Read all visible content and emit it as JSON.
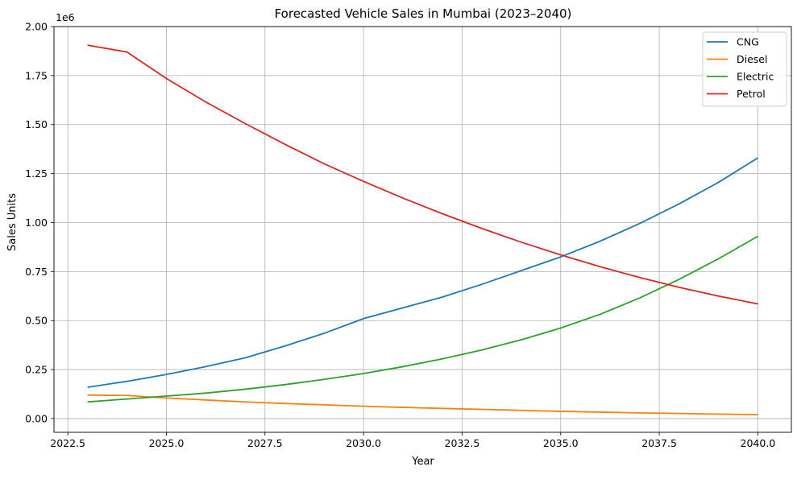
{
  "chart_data": {
    "type": "line",
    "title": "Forecasted Vehicle Sales in Mumbai (2023–2040)",
    "xlabel": "Year",
    "ylabel": "Sales Units",
    "y_offset_label": "1e6",
    "xlim": [
      2022.15,
      2040.85
    ],
    "ylim": [
      -0.07,
      2.0
    ],
    "y_scale_factor": 1000000,
    "xticks": [
      2022.5,
      2025.0,
      2027.5,
      2030.0,
      2032.5,
      2035.0,
      2037.5,
      2040.0
    ],
    "xtick_labels": [
      "2022.5",
      "2025.0",
      "2027.5",
      "2030.0",
      "2032.5",
      "2035.0",
      "2037.5",
      "2040.0"
    ],
    "yticks": [
      0.0,
      0.25,
      0.5,
      0.75,
      1.0,
      1.25,
      1.5,
      1.75,
      2.0
    ],
    "ytick_labels": [
      "0.00",
      "0.25",
      "0.50",
      "0.75",
      "1.00",
      "1.25",
      "1.50",
      "1.75",
      "2.00"
    ],
    "grid": true,
    "legend_position": "top-right",
    "x": [
      2023,
      2024,
      2025,
      2026,
      2027,
      2028,
      2029,
      2030,
      2031,
      2032,
      2033,
      2034,
      2035,
      2036,
      2037,
      2038,
      2039,
      2040
    ],
    "series": [
      {
        "name": "CNG",
        "color": "#1f77b4",
        "values": [
          0.16,
          0.19,
          0.225,
          0.265,
          0.31,
          0.37,
          0.435,
          0.51,
          0.565,
          0.62,
          0.685,
          0.755,
          0.825,
          0.905,
          0.995,
          1.095,
          1.205,
          1.33
        ]
      },
      {
        "name": "Diesel",
        "color": "#ff7f0e",
        "values": [
          0.12,
          0.118,
          0.105,
          0.095,
          0.085,
          0.077,
          0.07,
          0.063,
          0.057,
          0.052,
          0.047,
          0.042,
          0.037,
          0.033,
          0.029,
          0.026,
          0.023,
          0.02
        ]
      },
      {
        "name": "Electric",
        "color": "#2ca02c",
        "values": [
          0.085,
          0.1,
          0.115,
          0.13,
          0.15,
          0.173,
          0.2,
          0.23,
          0.265,
          0.305,
          0.35,
          0.402,
          0.462,
          0.532,
          0.615,
          0.71,
          0.815,
          0.93
        ]
      },
      {
        "name": "Petrol",
        "color": "#d62728",
        "values": [
          1.905,
          1.87,
          1.735,
          1.615,
          1.505,
          1.4,
          1.3,
          1.21,
          1.125,
          1.045,
          0.97,
          0.9,
          0.835,
          0.775,
          0.72,
          0.67,
          0.625,
          0.585
        ]
      }
    ]
  }
}
